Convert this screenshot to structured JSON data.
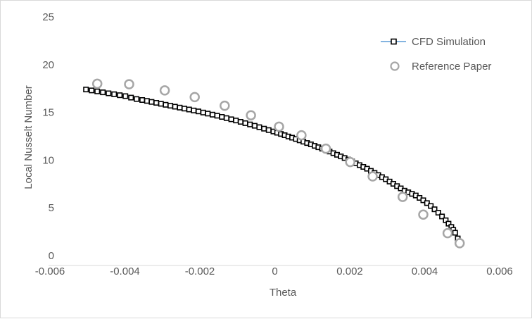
{
  "chart_data": {
    "type": "scatter",
    "title": "",
    "xlabel": "Theta",
    "ylabel": "Local Nusselt Number",
    "xlim": [
      -0.006,
      0.006
    ],
    "ylim": [
      0,
      25
    ],
    "x_ticks": [
      "-0.006",
      "-0.004",
      "-0.002",
      "0",
      "0.002",
      "0.004",
      "0.006"
    ],
    "y_ticks": [
      "0",
      "5",
      "10",
      "15",
      "20",
      "25"
    ],
    "grid": false,
    "legend_position": "top-right",
    "series": [
      {
        "name": "CFD Simulation",
        "marker": "square",
        "line_color": "#5b9bd5",
        "marker_edge": "#000000",
        "points": [
          [
            -0.005,
            17.4
          ],
          [
            -0.00485,
            17.3
          ],
          [
            -0.0047,
            17.2
          ],
          [
            -0.00455,
            17.1
          ],
          [
            -0.0044,
            17.0
          ],
          [
            -0.00425,
            16.9
          ],
          [
            -0.0041,
            16.8
          ],
          [
            -0.00395,
            16.7
          ],
          [
            -0.0038,
            16.55
          ],
          [
            -0.00365,
            16.4
          ],
          [
            -0.0035,
            16.3
          ],
          [
            -0.003,
            15.9
          ],
          [
            -0.0025,
            15.5
          ],
          [
            -0.002,
            15.1
          ],
          [
            -0.0015,
            14.65
          ],
          [
            -0.001,
            14.15
          ],
          [
            -0.0005,
            13.6
          ],
          [
            0.0,
            13.0
          ],
          [
            0.0005,
            12.35
          ],
          [
            0.001,
            11.65
          ],
          [
            0.0015,
            10.9
          ],
          [
            0.002,
            10.05
          ],
          [
            0.0025,
            9.1
          ],
          [
            0.003,
            8.0
          ],
          [
            0.0035,
            6.8
          ],
          [
            0.0038,
            6.3
          ],
          [
            0.004,
            5.8
          ],
          [
            0.0042,
            5.2
          ],
          [
            0.0044,
            4.5
          ],
          [
            0.0046,
            3.7
          ],
          [
            0.00475,
            3.0
          ],
          [
            0.00485,
            2.4
          ],
          [
            0.00492,
            1.8
          ],
          [
            0.00495,
            1.3
          ]
        ]
      },
      {
        "name": "Reference Paper",
        "marker": "circle",
        "marker_fill": "#ffffff",
        "marker_edge": "#a6a6a6",
        "points": [
          [
            -0.0047,
            18.0
          ],
          [
            -0.00385,
            17.95
          ],
          [
            -0.0029,
            17.3
          ],
          [
            -0.0021,
            16.6
          ],
          [
            -0.0013,
            15.7
          ],
          [
            -0.0006,
            14.7
          ],
          [
            0.00015,
            13.5
          ],
          [
            0.00075,
            12.6
          ],
          [
            0.0014,
            11.2
          ],
          [
            0.00205,
            9.8
          ],
          [
            0.00265,
            8.3
          ],
          [
            0.00345,
            6.15
          ],
          [
            0.004,
            4.3
          ],
          [
            0.00465,
            2.35
          ],
          [
            0.00497,
            1.3
          ]
        ]
      }
    ]
  }
}
